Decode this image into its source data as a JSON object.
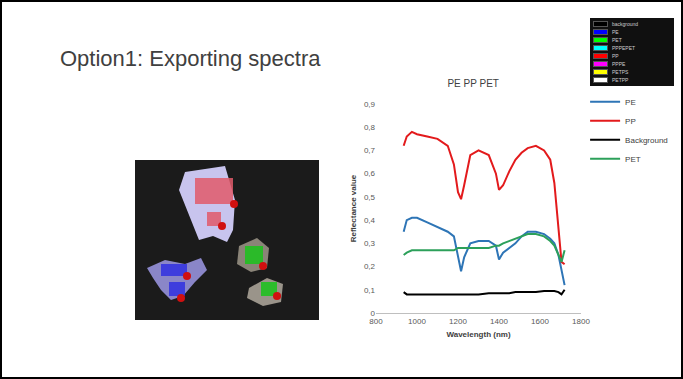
{
  "slide": {
    "title": "Option1: Exporting spectra",
    "class_legend": [
      {
        "name": "background",
        "color": "#000000"
      },
      {
        "name": "PE",
        "color": "#0000ff"
      },
      {
        "name": "PET",
        "color": "#00ff00"
      },
      {
        "name": "PPPEPET",
        "color": "#00ffff"
      },
      {
        "name": "PP",
        "color": "#ff0000"
      },
      {
        "name": "PPPE",
        "color": "#ff00ff"
      },
      {
        "name": "PETPS",
        "color": "#ffff00"
      },
      {
        "name": "PETPP",
        "color": "#ffffff"
      }
    ]
  },
  "chart_data": {
    "type": "line",
    "title": "PE PP PET",
    "x_label": "Wavelength (nm)",
    "y_label": "Reflectance value",
    "x": [
      935,
      950,
      975,
      1000,
      1050,
      1100,
      1150,
      1180,
      1200,
      1215,
      1230,
      1260,
      1300,
      1350,
      1385,
      1400,
      1420,
      1450,
      1480,
      1510,
      1540,
      1580,
      1620,
      1650,
      1670,
      1690,
      1705,
      1720
    ],
    "series": [
      {
        "name": "PE",
        "color": "#2e75b6",
        "values": [
          0.35,
          0.4,
          0.41,
          0.41,
          0.39,
          0.37,
          0.35,
          0.33,
          0.25,
          0.18,
          0.24,
          0.3,
          0.31,
          0.31,
          0.29,
          0.23,
          0.26,
          0.28,
          0.3,
          0.33,
          0.35,
          0.35,
          0.34,
          0.32,
          0.3,
          0.25,
          0.18,
          0.12
        ]
      },
      {
        "name": "PP",
        "color": "#e31a1c",
        "values": [
          0.72,
          0.76,
          0.78,
          0.77,
          0.76,
          0.75,
          0.72,
          0.64,
          0.52,
          0.49,
          0.55,
          0.68,
          0.7,
          0.68,
          0.6,
          0.53,
          0.55,
          0.61,
          0.66,
          0.69,
          0.71,
          0.72,
          0.7,
          0.66,
          0.56,
          0.38,
          0.22,
          0.21
        ]
      },
      {
        "name": "Background",
        "color": "#000000",
        "values": [
          0.09,
          0.08,
          0.08,
          0.08,
          0.08,
          0.08,
          0.08,
          0.08,
          0.08,
          0.08,
          0.08,
          0.08,
          0.08,
          0.085,
          0.085,
          0.085,
          0.085,
          0.085,
          0.09,
          0.09,
          0.09,
          0.09,
          0.095,
          0.095,
          0.095,
          0.09,
          0.08,
          0.1
        ]
      },
      {
        "name": "PET",
        "color": "#2ca05a",
        "values": [
          0.25,
          0.26,
          0.27,
          0.27,
          0.27,
          0.27,
          0.27,
          0.27,
          0.28,
          0.28,
          0.28,
          0.28,
          0.28,
          0.28,
          0.29,
          0.29,
          0.3,
          0.31,
          0.32,
          0.33,
          0.34,
          0.34,
          0.33,
          0.31,
          0.29,
          0.25,
          0.22,
          0.27
        ]
      }
    ],
    "xlim": [
      800,
      1800
    ],
    "xticks": [
      800,
      1000,
      1200,
      1400,
      1600,
      1800
    ],
    "ylim": [
      0,
      0.9
    ],
    "yticks": [
      0,
      {
        "value": 0.1,
        "label": "0,1"
      },
      {
        "value": 0.2,
        "label": "0,2"
      },
      {
        "value": 0.3,
        "label": "0,3"
      },
      {
        "value": 0.4,
        "label": "0,4"
      },
      {
        "value": 0.5,
        "label": "0,5"
      },
      {
        "value": 0.6,
        "label": "0,6"
      },
      {
        "value": 0.7,
        "label": "0,7"
      },
      {
        "value": 0.8,
        "label": "0,8"
      },
      {
        "value": 0.9,
        "label": "0,9"
      }
    ],
    "grid": false,
    "legend": "right"
  }
}
